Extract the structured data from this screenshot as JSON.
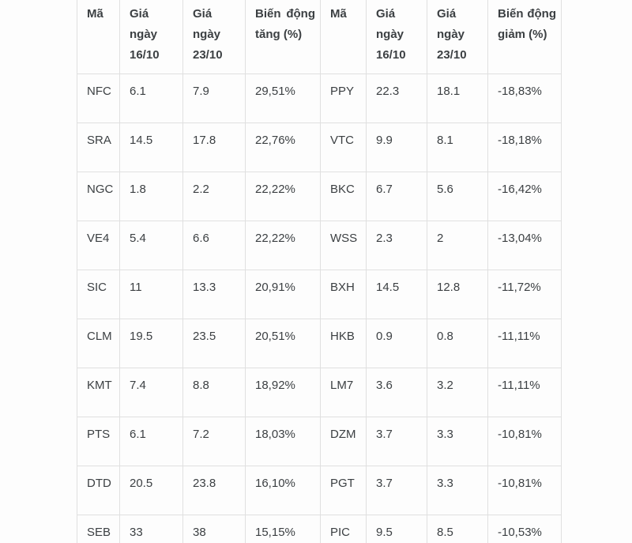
{
  "chart_data": {
    "type": "table",
    "title": "",
    "columns": [
      "Mã",
      "Giá ngày 16/10",
      "Giá ngày 23/10",
      "Biến động tăng (%)",
      "Mã",
      "Giá ngày 16/10",
      "Giá ngày 23/10",
      "Biến động giảm (%)"
    ],
    "rows": [
      [
        "NFC",
        "6.1",
        "7.9",
        "29,51%",
        "PPY",
        "22.3",
        "18.1",
        "-18,83%"
      ],
      [
        "SRA",
        "14.5",
        "17.8",
        "22,76%",
        "VTC",
        "9.9",
        "8.1",
        "-18,18%"
      ],
      [
        "NGC",
        "1.8",
        "2.2",
        "22,22%",
        "BKC",
        "6.7",
        "5.6",
        "-16,42%"
      ],
      [
        "VE4",
        "5.4",
        "6.6",
        "22,22%",
        "WSS",
        "2.3",
        "2",
        "-13,04%"
      ],
      [
        "SIC",
        "11",
        "13.3",
        "20,91%",
        "BXH",
        "14.5",
        "12.8",
        "-11,72%"
      ],
      [
        "CLM",
        "19.5",
        "23.5",
        "20,51%",
        "HKB",
        "0.9",
        "0.8",
        "-11,11%"
      ],
      [
        "KMT",
        "7.4",
        "8.8",
        "18,92%",
        "LM7",
        "3.6",
        "3.2",
        "-11,11%"
      ],
      [
        "PTS",
        "6.1",
        "7.2",
        "18,03%",
        "DZM",
        "3.7",
        "3.3",
        "-10,81%"
      ],
      [
        "DTD",
        "20.5",
        "23.8",
        "16,10%",
        "PGT",
        "3.7",
        "3.3",
        "-10,81%"
      ],
      [
        "SEB",
        "33",
        "38",
        "15,15%",
        "PIC",
        "9.5",
        "8.5",
        "-10,53%"
      ]
    ]
  },
  "colors": {
    "text": "#3c4043",
    "border": "#e0e0e0",
    "background": "#fdfdfd"
  }
}
